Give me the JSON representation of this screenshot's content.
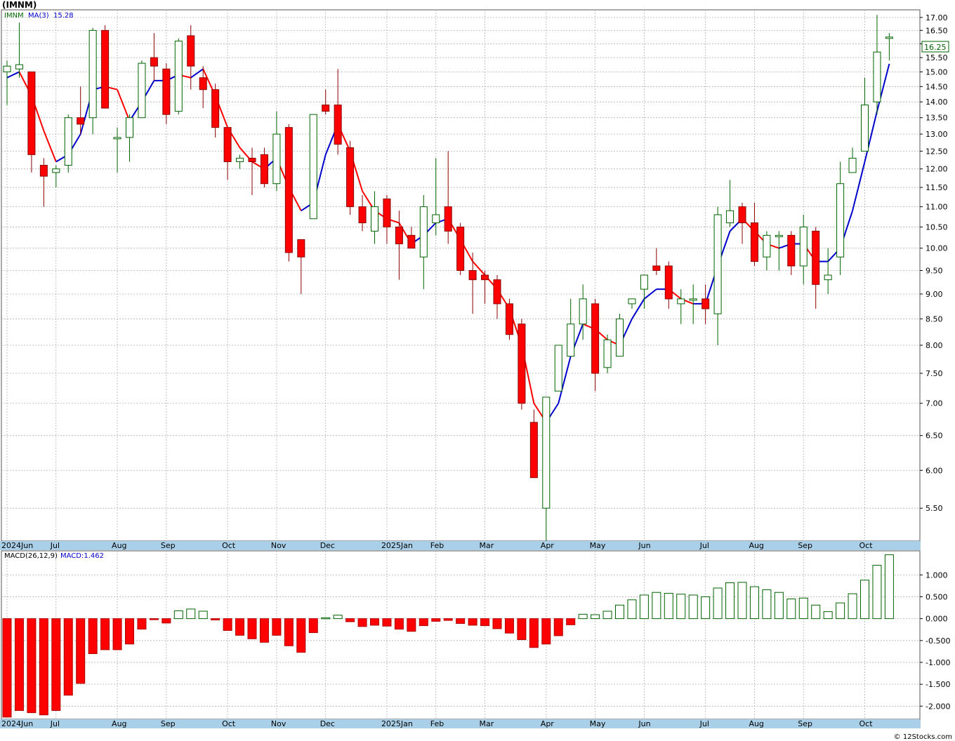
{
  "title": "(IMNM)",
  "credit": "© 12Stocks.com",
  "price_legend": {
    "symbol": "IMNM",
    "ma_label": "MA(3)",
    "ma_value": "15.28"
  },
  "macd_legend": {
    "label": "MACD(26,12,9)",
    "value_label": "MACD:1.462"
  },
  "last_price_label": "16.25",
  "colors": {
    "up": "#006400",
    "down": "#ff0000",
    "ma_up": "#0000cc",
    "ma_down": "#ff0000",
    "macd_up": "#006400",
    "macd_down": "#ff0000",
    "grid": "#b0b0b0",
    "axis_bar": "#a9d0e8"
  },
  "chart_data": [
    {
      "type": "candlestick",
      "scale": "log",
      "interval": "weekly",
      "ylim": [
        5.1,
        17.3
      ],
      "y_ticks": [
        5.5,
        6.0,
        6.5,
        7.0,
        7.5,
        8.0,
        8.5,
        9.0,
        9.5,
        10.0,
        10.5,
        11.0,
        11.5,
        12.0,
        12.5,
        13.0,
        13.5,
        14.0,
        14.5,
        15.0,
        15.5,
        16.0,
        16.5,
        17.0
      ],
      "y_tick_labels": [
        "5.50",
        "6.00",
        "6.50",
        "7.00",
        "7.50",
        "8.00",
        "8.50",
        "9.00",
        "9.50",
        "10.00",
        "10.50",
        "11.00",
        "11.50",
        "12.00",
        "12.50",
        "13.00",
        "13.50",
        "14.00",
        "14.50",
        "15.00",
        "15.50",
        "16.00",
        "16.50",
        "17.00"
      ],
      "x_labels": [
        {
          "label": "2024Jun",
          "week": 0
        },
        {
          "label": "Jul",
          "week": 4
        },
        {
          "label": "Aug",
          "week": 9
        },
        {
          "label": "Sep",
          "week": 13
        },
        {
          "label": "Oct",
          "week": 18
        },
        {
          "label": "Nov",
          "week": 22
        },
        {
          "label": "Dec",
          "week": 26
        },
        {
          "label": "2025Jan",
          "week": 31
        },
        {
          "label": "Feb",
          "week": 35
        },
        {
          "label": "Mar",
          "week": 39
        },
        {
          "label": "Apr",
          "week": 44
        },
        {
          "label": "May",
          "week": 48
        },
        {
          "label": "Jun",
          "week": 52
        },
        {
          "label": "Jul",
          "week": 57
        },
        {
          "label": "Aug",
          "week": 61
        },
        {
          "label": "Sep",
          "week": 65
        },
        {
          "label": "Oct",
          "week": 70
        }
      ],
      "ohlc": [
        [
          15.0,
          15.4,
          13.9,
          15.2
        ],
        [
          15.1,
          16.8,
          14.8,
          15.25
        ],
        [
          15.0,
          15.0,
          11.9,
          12.4
        ],
        [
          12.1,
          12.3,
          11.0,
          11.8
        ],
        [
          11.9,
          12.1,
          11.5,
          12.0
        ],
        [
          12.1,
          13.6,
          11.9,
          13.5
        ],
        [
          13.5,
          14.5,
          13.0,
          13.3
        ],
        [
          13.5,
          16.6,
          13.0,
          16.5
        ],
        [
          16.5,
          16.7,
          13.8,
          13.8
        ],
        [
          12.9,
          13.2,
          11.9,
          12.9
        ],
        [
          12.9,
          13.6,
          12.2,
          13.5
        ],
        [
          13.5,
          15.4,
          13.5,
          15.3
        ],
        [
          15.5,
          16.4,
          14.7,
          15.2
        ],
        [
          15.1,
          15.3,
          13.3,
          13.6
        ],
        [
          13.7,
          16.2,
          13.6,
          16.1
        ],
        [
          16.3,
          16.7,
          14.4,
          15.2
        ],
        [
          14.8,
          15.2,
          13.8,
          14.4
        ],
        [
          14.4,
          14.6,
          12.9,
          13.2
        ],
        [
          13.2,
          13.2,
          11.7,
          12.2
        ],
        [
          12.2,
          12.4,
          12.0,
          12.3
        ],
        [
          12.3,
          12.6,
          11.3,
          12.2
        ],
        [
          12.4,
          12.6,
          11.5,
          11.6
        ],
        [
          11.6,
          13.7,
          11.4,
          13.0
        ],
        [
          13.2,
          13.3,
          9.7,
          9.9
        ],
        [
          10.2,
          10.2,
          9.0,
          9.8
        ],
        [
          10.7,
          13.6,
          10.7,
          13.6
        ],
        [
          13.9,
          14.4,
          13.6,
          13.7
        ],
        [
          13.9,
          15.1,
          12.4,
          12.7
        ],
        [
          12.6,
          12.8,
          10.8,
          11.0
        ],
        [
          11.0,
          11.3,
          10.4,
          10.6
        ],
        [
          10.4,
          11.4,
          10.1,
          11.0
        ],
        [
          11.2,
          11.3,
          10.1,
          10.5
        ],
        [
          10.5,
          10.9,
          9.3,
          10.1
        ],
        [
          10.3,
          10.5,
          10.0,
          10.0
        ],
        [
          9.8,
          11.3,
          9.1,
          11.0
        ],
        [
          10.6,
          12.3,
          10.3,
          10.8
        ],
        [
          11.0,
          12.5,
          10.1,
          10.4
        ],
        [
          10.5,
          10.6,
          9.4,
          9.5
        ],
        [
          9.5,
          9.9,
          8.6,
          9.3
        ],
        [
          9.4,
          9.5,
          8.8,
          9.3
        ],
        [
          9.3,
          9.4,
          8.5,
          8.8
        ],
        [
          8.8,
          8.9,
          8.1,
          8.2
        ],
        [
          8.4,
          8.5,
          6.9,
          7.0
        ],
        [
          6.7,
          6.9,
          5.9,
          5.9
        ],
        [
          5.5,
          7.1,
          5.1,
          7.1
        ],
        [
          7.2,
          8.0,
          7.2,
          8.0
        ],
        [
          7.8,
          8.9,
          7.8,
          8.4
        ],
        [
          8.4,
          9.2,
          8.1,
          8.9
        ],
        [
          8.8,
          8.9,
          7.2,
          7.5
        ],
        [
          7.6,
          8.2,
          7.5,
          8.1
        ],
        [
          7.8,
          8.6,
          7.8,
          8.5
        ],
        [
          8.8,
          8.9,
          8.7,
          8.9
        ],
        [
          9.1,
          9.4,
          8.7,
          9.4
        ],
        [
          9.6,
          10.0,
          9.4,
          9.5
        ],
        [
          9.6,
          9.7,
          8.7,
          8.9
        ],
        [
          8.8,
          9.1,
          8.4,
          8.9
        ],
        [
          8.9,
          9.2,
          8.4,
          8.9
        ],
        [
          8.9,
          9.2,
          8.4,
          8.7
        ],
        [
          8.6,
          11.0,
          8.0,
          10.8
        ],
        [
          10.6,
          11.7,
          10.5,
          10.9
        ],
        [
          11.0,
          11.1,
          10.1,
          10.6
        ],
        [
          10.6,
          11.1,
          9.6,
          9.7
        ],
        [
          9.8,
          10.4,
          9.5,
          10.3
        ],
        [
          10.3,
          10.4,
          9.5,
          10.3
        ],
        [
          10.3,
          10.4,
          9.4,
          9.6
        ],
        [
          9.6,
          10.8,
          9.2,
          10.5
        ],
        [
          10.4,
          10.5,
          8.7,
          9.2
        ],
        [
          9.3,
          10.0,
          9.0,
          9.4
        ],
        [
          9.8,
          12.2,
          9.4,
          11.6
        ],
        [
          11.9,
          12.6,
          11.9,
          12.3
        ],
        [
          12.5,
          14.8,
          12.5,
          13.9
        ],
        [
          14.0,
          17.1,
          13.6,
          15.7
        ],
        [
          16.25,
          16.4,
          15.4,
          16.25
        ]
      ],
      "ma3": [
        14.8,
        15.0,
        14.2,
        13.1,
        12.2,
        12.4,
        13.0,
        14.4,
        14.5,
        14.4,
        13.4,
        14.0,
        14.7,
        14.7,
        14.9,
        14.8,
        15.1,
        14.2,
        13.2,
        12.6,
        12.2,
        12.0,
        12.3,
        11.5,
        10.9,
        11.1,
        12.4,
        13.3,
        12.5,
        11.4,
        10.9,
        10.7,
        10.6,
        10.1,
        10.3,
        10.6,
        10.7,
        10.2,
        9.7,
        9.4,
        9.1,
        8.7,
        8.0,
        7.0,
        6.7,
        7.0,
        7.8,
        8.4,
        8.3,
        8.1,
        8.0,
        8.5,
        8.9,
        9.1,
        9.1,
        8.9,
        8.8,
        8.8,
        9.6,
        10.4,
        10.7,
        10.4,
        10.1,
        10.0,
        10.1,
        10.1,
        9.7,
        9.7,
        10.0,
        10.9,
        12.2,
        13.7,
        15.28
      ]
    },
    {
      "type": "bar",
      "name": "MACD(26,12,9)",
      "ylim": [
        -2.3,
        1.55
      ],
      "y_ticks": [
        -2.0,
        -1.5,
        -1.0,
        -0.5,
        0.0,
        0.5,
        1.0
      ],
      "y_tick_labels": [
        "-2.000",
        "-1.500",
        "-1.000",
        "-0.500",
        "0.000",
        "0.500",
        "1.000"
      ],
      "values": [
        -2.25,
        -2.1,
        -2.15,
        -2.2,
        -2.1,
        -1.75,
        -1.48,
        -0.8,
        -0.71,
        -0.71,
        -0.58,
        -0.24,
        -0.02,
        -0.1,
        0.18,
        0.22,
        0.17,
        -0.03,
        -0.27,
        -0.38,
        -0.46,
        -0.54,
        -0.38,
        -0.62,
        -0.77,
        -0.32,
        0.02,
        0.08,
        -0.07,
        -0.18,
        -0.15,
        -0.17,
        -0.24,
        -0.29,
        -0.16,
        -0.06,
        -0.04,
        -0.11,
        -0.15,
        -0.16,
        -0.23,
        -0.33,
        -0.48,
        -0.66,
        -0.58,
        -0.39,
        -0.14,
        0.1,
        0.09,
        0.17,
        0.31,
        0.43,
        0.54,
        0.6,
        0.58,
        0.56,
        0.54,
        0.5,
        0.7,
        0.82,
        0.83,
        0.73,
        0.66,
        0.6,
        0.45,
        0.47,
        0.31,
        0.16,
        0.36,
        0.57,
        0.88,
        1.22,
        1.46
      ]
    }
  ]
}
